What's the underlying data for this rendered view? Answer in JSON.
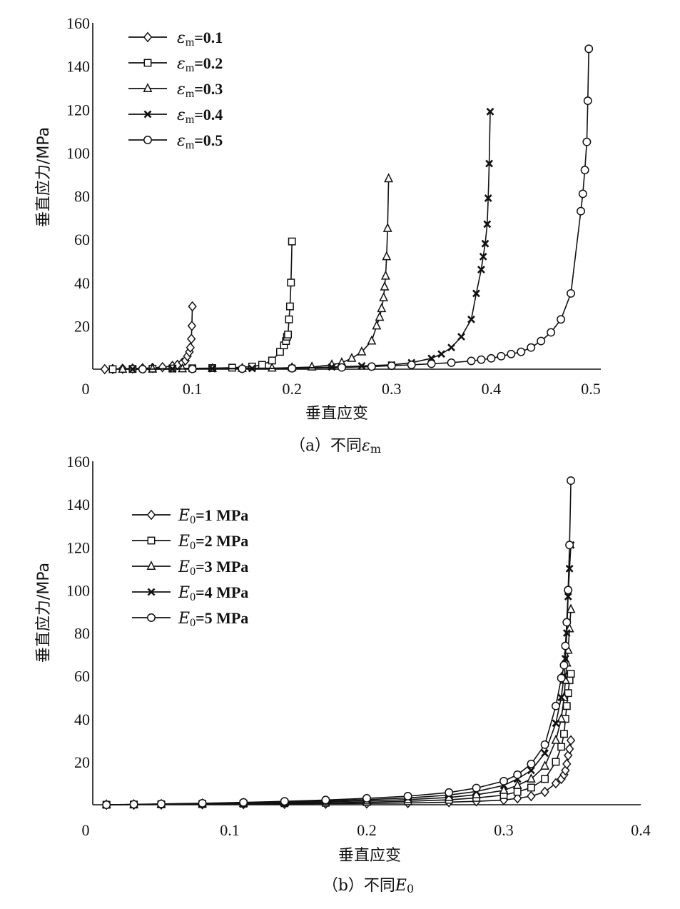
{
  "chart_data": [
    {
      "type": "line",
      "caption_prefix": "（a）不同",
      "caption_symbol": "ε",
      "caption_sub": "m",
      "xlabel": "垂直应变",
      "ylabel": "垂直应力/MPa",
      "xlim": [
        0,
        0.5
      ],
      "ylim": [
        0,
        160
      ],
      "x_ticks": [
        "0",
        "0.1",
        "0.2",
        "0.3",
        "0.4",
        "0.5"
      ],
      "x_tick_values": [
        0,
        0.1,
        0.2,
        0.3,
        0.4,
        0.5
      ],
      "y_ticks": [
        "20",
        "40",
        "60",
        "80",
        "100",
        "120",
        "140",
        "160"
      ],
      "y_tick_values": [
        20,
        40,
        60,
        80,
        100,
        120,
        140,
        160
      ],
      "legend_position": "top-left",
      "series": [
        {
          "name": "εm=0.1",
          "label_symbol": "ε",
          "label_sub": "m",
          "label_rest": "=0.1",
          "marker": "diamond",
          "x": [
            0.012,
            0.02,
            0.03,
            0.04,
            0.05,
            0.06,
            0.07,
            0.08,
            0.085,
            0.09,
            0.093,
            0.095,
            0.097,
            0.098,
            0.099,
            0.0995,
            0.1
          ],
          "y": [
            0,
            0.1,
            0.2,
            0.3,
            0.4,
            0.6,
            0.9,
            1.5,
            2,
            3,
            4,
            6,
            8,
            10,
            14,
            20,
            29
          ]
        },
        {
          "name": "εm=0.2",
          "label_symbol": "ε",
          "label_sub": "m",
          "label_rest": "=0.2",
          "marker": "square",
          "x": [
            0.02,
            0.04,
            0.06,
            0.08,
            0.1,
            0.12,
            0.14,
            0.16,
            0.17,
            0.18,
            0.188,
            0.192,
            0.194,
            0.195,
            0.196,
            0.197,
            0.198,
            0.199,
            0.2
          ],
          "y": [
            0,
            0.1,
            0.2,
            0.3,
            0.4,
            0.5,
            0.7,
            1.2,
            2,
            4,
            8,
            11,
            13,
            15,
            16,
            23,
            29,
            40,
            59
          ]
        },
        {
          "name": "εm=0.3",
          "label_symbol": "ε",
          "label_sub": "m",
          "label_rest": "=0.3",
          "marker": "triangle",
          "x": [
            0.03,
            0.06,
            0.09,
            0.12,
            0.15,
            0.18,
            0.2,
            0.22,
            0.24,
            0.25,
            0.26,
            0.27,
            0.28,
            0.285,
            0.288,
            0.29,
            0.292,
            0.293,
            0.294,
            0.295,
            0.296,
            0.297
          ],
          "y": [
            0,
            0.1,
            0.2,
            0.3,
            0.4,
            0.5,
            0.7,
            1,
            2,
            3,
            5,
            8,
            13,
            20,
            24,
            28,
            33,
            38,
            43,
            52,
            65,
            88
          ]
        },
        {
          "name": "εm=0.4",
          "label_symbol": "ε",
          "label_sub": "m",
          "label_rest": "=0.4",
          "marker": "cross",
          "x": [
            0.04,
            0.08,
            0.12,
            0.16,
            0.2,
            0.24,
            0.27,
            0.3,
            0.32,
            0.34,
            0.35,
            0.36,
            0.37,
            0.38,
            0.385,
            0.39,
            0.392,
            0.394,
            0.396,
            0.397,
            0.398,
            0.399
          ],
          "y": [
            0,
            0.1,
            0.2,
            0.3,
            0.5,
            1,
            1.5,
            2,
            3,
            5,
            7,
            10,
            15,
            23,
            35,
            46,
            52,
            58,
            67,
            79,
            95,
            119
          ]
        },
        {
          "name": "εm=0.5",
          "label_symbol": "ε",
          "label_sub": "m",
          "label_rest": "=0.5",
          "marker": "circle",
          "x": [
            0.05,
            0.1,
            0.15,
            0.2,
            0.25,
            0.28,
            0.3,
            0.32,
            0.34,
            0.36,
            0.38,
            0.39,
            0.4,
            0.41,
            0.42,
            0.43,
            0.44,
            0.45,
            0.46,
            0.47,
            0.48,
            0.49,
            0.492,
            0.494,
            0.496,
            0.497,
            0.498
          ],
          "y": [
            0,
            0.1,
            0.2,
            0.4,
            0.8,
            1.2,
            1.6,
            2,
            2.5,
            3,
            3.8,
            4.4,
            5,
            6,
            7,
            8,
            10,
            13,
            17,
            23,
            35,
            73,
            81,
            92,
            105,
            124,
            148
          ]
        }
      ]
    },
    {
      "type": "line",
      "caption_prefix": "（b）不同",
      "caption_symbol": "E",
      "caption_sub": "0",
      "xlabel": "垂直应变",
      "ylabel": "垂直应力/MPa",
      "xlim": [
        0,
        0.4
      ],
      "ylim": [
        0,
        160
      ],
      "x_ticks": [
        "0",
        "0.1",
        "0.2",
        "0.3",
        "0.4"
      ],
      "x_tick_values": [
        0,
        0.1,
        0.2,
        0.3,
        0.4
      ],
      "y_ticks": [
        "20",
        "40",
        "60",
        "80",
        "100",
        "120",
        "140",
        "160"
      ],
      "y_tick_values": [
        20,
        40,
        60,
        80,
        100,
        120,
        140,
        160
      ],
      "legend_position": "top-left",
      "series": [
        {
          "name": "E0=1 MPa",
          "label_symbol": "E",
          "label_sub": "0",
          "label_rest": "=1 MPa",
          "marker": "diamond",
          "x": [
            0.01,
            0.03,
            0.05,
            0.08,
            0.11,
            0.14,
            0.17,
            0.2,
            0.23,
            0.26,
            0.28,
            0.3,
            0.31,
            0.32,
            0.33,
            0.338,
            0.342,
            0.344,
            0.345,
            0.346,
            0.347,
            0.348,
            0.349
          ],
          "y": [
            0,
            0.05,
            0.1,
            0.2,
            0.3,
            0.4,
            0.5,
            0.6,
            0.8,
            1.2,
            1.6,
            2.2,
            3,
            4,
            6,
            10,
            12,
            14,
            16,
            19,
            23,
            26,
            30
          ]
        },
        {
          "name": "E0=2 MPa",
          "label_symbol": "E",
          "label_sub": "0",
          "label_rest": "=2 MPa",
          "marker": "square",
          "x": [
            0.01,
            0.03,
            0.05,
            0.08,
            0.11,
            0.14,
            0.17,
            0.2,
            0.23,
            0.26,
            0.28,
            0.3,
            0.31,
            0.32,
            0.33,
            0.338,
            0.342,
            0.344,
            0.345,
            0.346,
            0.347,
            0.348,
            0.349
          ],
          "y": [
            0,
            0.1,
            0.2,
            0.3,
            0.5,
            0.7,
            0.9,
            1.2,
            1.6,
            2.3,
            3.2,
            4.5,
            6,
            8,
            12,
            20,
            27,
            33,
            40,
            46,
            52,
            58,
            61
          ]
        },
        {
          "name": "E0=3 MPa",
          "label_symbol": "E",
          "label_sub": "0",
          "label_rest": "=3 MPa",
          "marker": "triangle",
          "x": [
            0.01,
            0.03,
            0.05,
            0.08,
            0.11,
            0.14,
            0.17,
            0.2,
            0.23,
            0.26,
            0.28,
            0.3,
            0.31,
            0.32,
            0.33,
            0.338,
            0.342,
            0.344,
            0.345,
            0.346,
            0.347,
            0.348,
            0.349
          ],
          "y": [
            0,
            0.1,
            0.3,
            0.5,
            0.7,
            1,
            1.4,
            1.8,
            2.4,
            3.4,
            4.7,
            6.7,
            9,
            12,
            18,
            30,
            40,
            50,
            58,
            66,
            72,
            82,
            91
          ]
        },
        {
          "name": "E0=4 MPa",
          "label_symbol": "E",
          "label_sub": "0",
          "label_rest": "=4 MPa",
          "marker": "cross",
          "x": [
            0.01,
            0.03,
            0.05,
            0.08,
            0.11,
            0.14,
            0.17,
            0.2,
            0.23,
            0.26,
            0.28,
            0.3,
            0.31,
            0.32,
            0.33,
            0.338,
            0.342,
            0.344,
            0.345,
            0.346,
            0.347,
            0.348,
            0.349
          ],
          "y": [
            0,
            0.1,
            0.3,
            0.6,
            0.9,
            1.3,
            1.8,
            2.4,
            3.2,
            4.5,
            6.2,
            9,
            12,
            16,
            24,
            38,
            50,
            60,
            68,
            80,
            97,
            110,
            121
          ]
        },
        {
          "name": "E0=5 MPa",
          "label_symbol": "E",
          "label_sub": "0",
          "label_rest": "=5 MPa",
          "marker": "circle",
          "x": [
            0.01,
            0.03,
            0.05,
            0.08,
            0.11,
            0.14,
            0.17,
            0.2,
            0.23,
            0.26,
            0.28,
            0.3,
            0.31,
            0.32,
            0.33,
            0.338,
            0.342,
            0.344,
            0.345,
            0.346,
            0.347,
            0.348,
            0.349
          ],
          "y": [
            0,
            0.2,
            0.4,
            0.7,
            1.1,
            1.6,
            2.2,
            3,
            4,
            5.7,
            7.8,
            11,
            14,
            19,
            28,
            46,
            59,
            65,
            74,
            85,
            100,
            121,
            151
          ]
        }
      ]
    }
  ]
}
